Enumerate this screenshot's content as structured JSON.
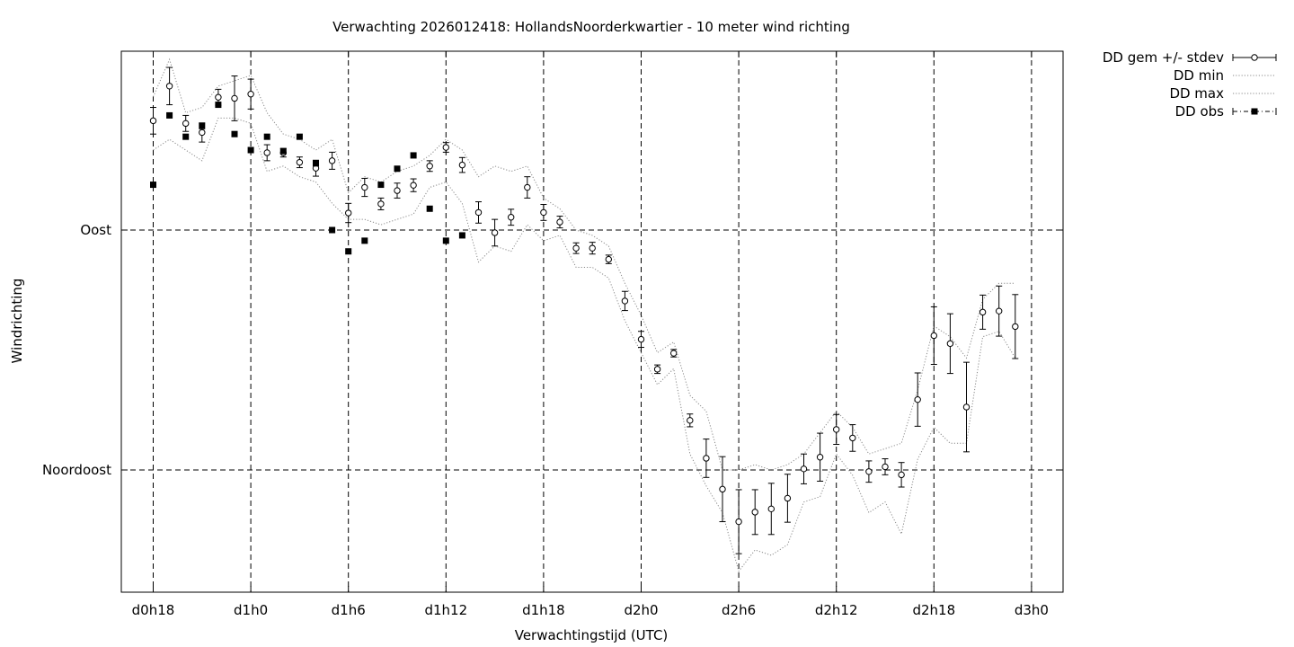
{
  "chart_data": {
    "type": "line",
    "title": "Verwachting 2026012418: HollandsNoorderkwartier - 10 meter wind richting",
    "xlabel": "Verwachtingstijd (UTC)",
    "ylabel": "Windrichting",
    "x_ticks": [
      {
        "label": "d0h18",
        "value": 18
      },
      {
        "label": "d1h0",
        "value": 24
      },
      {
        "label": "d1h6",
        "value": 30
      },
      {
        "label": "d1h12",
        "value": 36
      },
      {
        "label": "d1h18",
        "value": 42
      },
      {
        "label": "d2h0",
        "value": 48
      },
      {
        "label": "d2h6",
        "value": 54
      },
      {
        "label": "d2h12",
        "value": 60
      },
      {
        "label": "d2h18",
        "value": 66
      },
      {
        "label": "d3h0",
        "value": 72
      }
    ],
    "y_ticks": [
      {
        "label": "Oost",
        "value": 90
      },
      {
        "label": "Noordoost",
        "value": 45
      }
    ],
    "xlim": [
      16,
      74
    ],
    "ylim": [
      22,
      123
    ],
    "grid": true,
    "legend_position": "outside-top-right",
    "legend": [
      "DD gem +/- stdev",
      "DD min",
      "DD max",
      "DD obs"
    ],
    "series_mean": {
      "name": "DD gem +/- stdev",
      "x": [
        18,
        19,
        20,
        21,
        22,
        23,
        24,
        25,
        26,
        27,
        28,
        29,
        30,
        31,
        32,
        33,
        34,
        35,
        36,
        37,
        38,
        39,
        40,
        41,
        42,
        43,
        44,
        45,
        46,
        47,
        48,
        49,
        50,
        51,
        52,
        53,
        54,
        55,
        56,
        57,
        58,
        59,
        60,
        61,
        62,
        63,
        64,
        65,
        66,
        67,
        68,
        69,
        70,
        71
      ],
      "y": [
        110.5,
        117.0,
        110.0,
        108.3,
        114.9,
        114.7,
        115.5,
        104.5,
        104.5,
        102.7,
        101.6,
        103.0,
        93.2,
        98.0,
        94.9,
        97.4,
        98.4,
        102.0,
        105.5,
        102.2,
        93.3,
        89.5,
        92.4,
        98.0,
        93.3,
        91.5,
        86.6,
        86.6,
        84.5,
        76.7,
        69.5,
        63.9,
        66.9,
        54.3,
        47.2,
        41.4,
        35.3,
        37.1,
        37.7,
        39.7,
        45.2,
        47.4,
        52.6,
        51.0,
        44.7,
        45.6,
        44.1,
        58.2,
        70.2,
        68.7,
        56.8,
        74.6,
        74.8,
        71.9
      ],
      "err": [
        2.5,
        3.5,
        1.5,
        1.8,
        1.5,
        4.2,
        2.8,
        1.5,
        0.8,
        1.0,
        1.5,
        1.6,
        1.8,
        1.7,
        1.1,
        1.4,
        1.2,
        1.0,
        0.9,
        1.4,
        2.0,
        2.5,
        1.5,
        2.0,
        1.5,
        1.1,
        1.0,
        1.1,
        0.8,
        1.8,
        1.5,
        0.8,
        0.7,
        1.2,
        3.6,
        6.1,
        6.0,
        4.2,
        4.8,
        4.5,
        2.8,
        4.5,
        2.8,
        2.5,
        2.0,
        1.5,
        2.3,
        5.0,
        5.4,
        5.6,
        8.4,
        3.2,
        4.7,
        6.0
      ]
    },
    "series_min": {
      "name": "DD min",
      "x": [
        18,
        19,
        20,
        21,
        22,
        23,
        24,
        25,
        26,
        27,
        28,
        29,
        30,
        31,
        32,
        33,
        34,
        35,
        36,
        37,
        38,
        39,
        40,
        41,
        42,
        43,
        44,
        45,
        46,
        47,
        48,
        49,
        50,
        51,
        52,
        53,
        54,
        55,
        56,
        57,
        58,
        59,
        60,
        61,
        62,
        63,
        64,
        65,
        66,
        67,
        68,
        69,
        70,
        71
      ],
      "y": [
        105,
        107,
        105,
        103,
        111,
        111,
        110,
        101,
        102,
        100,
        99,
        95,
        92,
        92,
        91,
        92,
        93,
        98,
        99,
        95,
        84,
        87,
        86,
        91,
        88,
        89,
        83,
        83,
        81,
        73,
        67,
        61,
        64,
        48,
        42,
        37,
        26,
        30,
        29,
        31,
        39,
        40,
        48,
        44,
        37,
        39,
        33,
        47,
        53,
        50,
        50,
        70,
        71,
        66
      ]
    },
    "series_max": {
      "name": "DD max",
      "x": [
        18,
        19,
        20,
        21,
        22,
        23,
        24,
        25,
        26,
        27,
        28,
        29,
        30,
        31,
        32,
        33,
        34,
        35,
        36,
        37,
        38,
        39,
        40,
        41,
        42,
        43,
        44,
        45,
        46,
        47,
        48,
        49,
        50,
        51,
        52,
        53,
        54,
        55,
        56,
        57,
        58,
        59,
        60,
        61,
        62,
        63,
        64,
        65,
        66,
        67,
        68,
        69,
        70,
        71
      ],
      "y": [
        115,
        122,
        112,
        113,
        117,
        118,
        119,
        112,
        108,
        107,
        105,
        107,
        97,
        100,
        99,
        101,
        102,
        104,
        107,
        105,
        100,
        102,
        101,
        102,
        96,
        94,
        90,
        89,
        87,
        80,
        74,
        67,
        69,
        59,
        56,
        45,
        45,
        46,
        45,
        46,
        48,
        52,
        56,
        53,
        48,
        49,
        50,
        60,
        72,
        70,
        66,
        77,
        80,
        80
      ]
    },
    "series_obs": {
      "name": "DD obs",
      "x": [
        18,
        19,
        20,
        21,
        22,
        23,
        24,
        25,
        26,
        27,
        28,
        29,
        30,
        31,
        32,
        33,
        34,
        35,
        36,
        37
      ],
      "y": [
        98.5,
        111.5,
        107.5,
        109.5,
        113.5,
        108.0,
        105.0,
        107.5,
        104.8,
        107.5,
        102.5,
        90.0,
        86.0,
        88.0,
        98.5,
        101.5,
        104.0,
        94.0,
        88.0,
        89.0
      ]
    }
  }
}
